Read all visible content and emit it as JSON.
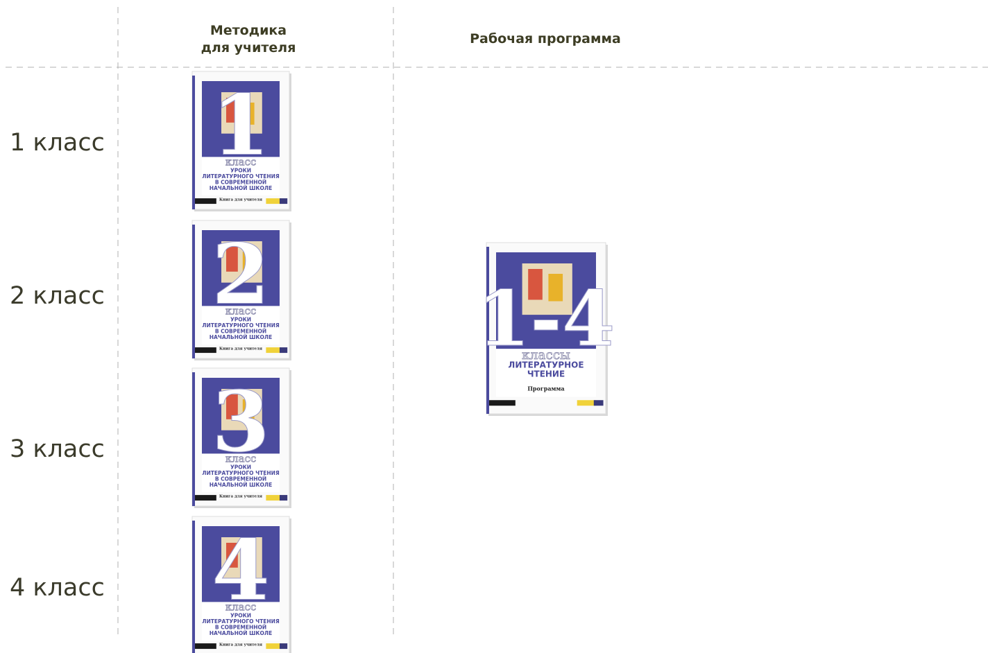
{
  "columns": [
    {
      "lines": [
        "Методика",
        "для учителя"
      ]
    },
    {
      "lines": [
        "Рабочая программа"
      ]
    }
  ],
  "rows": [
    {
      "label": "1 класс",
      "book": {
        "number": "1",
        "grade_word": "класс",
        "title": [
          "УРОКИ",
          "ЛИТЕРАТУРНОГО ЧТЕНИЯ",
          "В СОВРЕМЕННОЙ",
          "НАЧАЛЬНОЙ ШКОЛЕ"
        ],
        "subtitle": "Книга для учителя"
      }
    },
    {
      "label": "2 класс",
      "book": {
        "number": "2",
        "grade_word": "класс",
        "title": [
          "УРОКИ",
          "ЛИТЕРАТУРНОГО ЧТЕНИЯ",
          "В СОВРЕМЕННОЙ",
          "НАЧАЛЬНОЙ ШКОЛЕ"
        ],
        "subtitle": "Книга для учителя"
      }
    },
    {
      "label": "3 класс",
      "book": {
        "number": "3",
        "grade_word": "класс",
        "title": [
          "УРОКИ",
          "ЛИТЕРАТУРНОГО ЧТЕНИЯ",
          "В СОВРЕМЕННОЙ",
          "НАЧАЛЬНОЙ ШКОЛЕ"
        ],
        "subtitle": "Книга для учителя"
      }
    },
    {
      "label": "4 класс",
      "book": {
        "number": "4",
        "grade_word": "класс",
        "title": [
          "УРОКИ",
          "ЛИТЕРАТУРНОГО ЧТЕНИЯ",
          "В СОВРЕМЕННОЙ",
          "НАЧАЛЬНОЙ ШКОЛЕ"
        ],
        "subtitle": "Книга для учителя"
      }
    }
  ],
  "program": {
    "number": "1-4",
    "grade_word": "классы",
    "title": [
      "ЛИТЕРАТУРНОЕ",
      "ЧТЕНИЕ"
    ],
    "subtitle": "Программа"
  }
}
